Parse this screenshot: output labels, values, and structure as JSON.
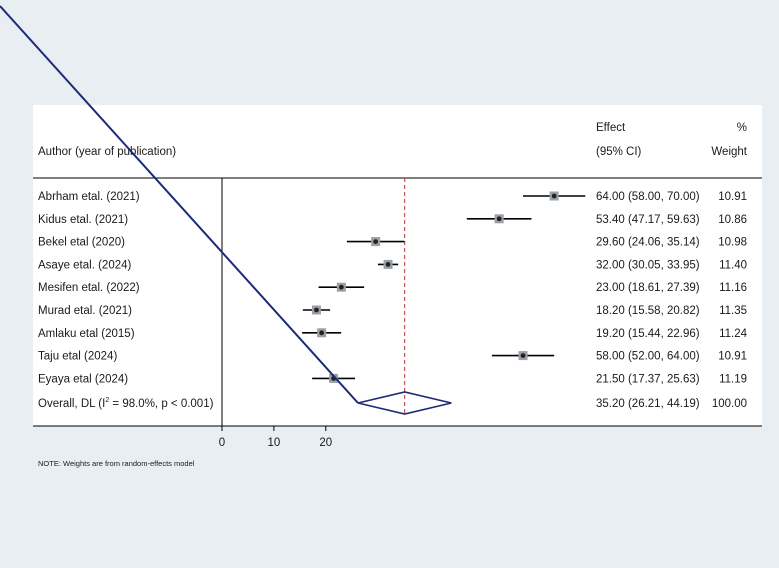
{
  "chart_data": {
    "type": "forest",
    "headers": {
      "author": "Author (year of publication)",
      "effect_line1": "Effect",
      "effect_line2": "(95% CI)",
      "weight_line1": "%",
      "weight_line2": "Weight"
    },
    "studies": [
      {
        "author": "Abrham etal. (2021)",
        "effect": 64.0,
        "lower": 58.0,
        "upper": 70.0,
        "ci_text": "64.00 (58.00, 70.00)",
        "weight": "10.91"
      },
      {
        "author": "Kidus etal. (2021)",
        "effect": 53.4,
        "lower": 47.17,
        "upper": 59.63,
        "ci_text": "53.40 (47.17, 59.63)",
        "weight": "10.86"
      },
      {
        "author": "Bekel etal (2020)",
        "effect": 29.6,
        "lower": 24.06,
        "upper": 35.14,
        "ci_text": "29.60 (24.06, 35.14)",
        "weight": "10.98"
      },
      {
        "author": "Asaye etal. (2024)",
        "effect": 32.0,
        "lower": 30.05,
        "upper": 33.95,
        "ci_text": "32.00 (30.05, 33.95)",
        "weight": "11.40"
      },
      {
        "author": "Mesifen etal. (2022)",
        "effect": 23.0,
        "lower": 18.61,
        "upper": 27.39,
        "ci_text": "23.00 (18.61, 27.39)",
        "weight": "11.16"
      },
      {
        "author": "Murad etal. (2021)",
        "effect": 18.2,
        "lower": 15.58,
        "upper": 20.82,
        "ci_text": "18.20 (15.58, 20.82)",
        "weight": "11.35"
      },
      {
        "author": "Amlaku etal (2015)",
        "effect": 19.2,
        "lower": 15.44,
        "upper": 22.96,
        "ci_text": "19.20 (15.44, 22.96)",
        "weight": "11.24"
      },
      {
        "author": "Taju etal (2024)",
        "effect": 58.0,
        "lower": 52.0,
        "upper": 64.0,
        "ci_text": "58.00 (52.00, 64.00)",
        "weight": "10.91"
      },
      {
        "author": "Eyaya etal (2024)",
        "effect": 21.5,
        "lower": 17.37,
        "upper": 25.63,
        "ci_text": "21.50 (17.37, 25.63)",
        "weight": "11.19"
      }
    ],
    "overall": {
      "label_prefix": "Overall, DL (I",
      "label_sup": "2",
      "label_suffix": " = 98.0%, p < 0.001)",
      "effect": 35.2,
      "lower": 26.21,
      "upper": 44.19,
      "ci_text": "35.20 (26.21, 44.19)",
      "weight": "100.00"
    },
    "x_ticks": [
      0,
      10,
      20
    ],
    "null_line": 0,
    "overall_line": 35.2,
    "note": "NOTE: Weights are from random-effects model",
    "colors": {
      "background": "#e8eef2",
      "panel": "#ffffff",
      "diamond": "#1c2a7a",
      "overall_line": "#b8313a",
      "diagonal": "#1c2a7a",
      "ci_line": "#000000",
      "marker": "#222222"
    }
  }
}
